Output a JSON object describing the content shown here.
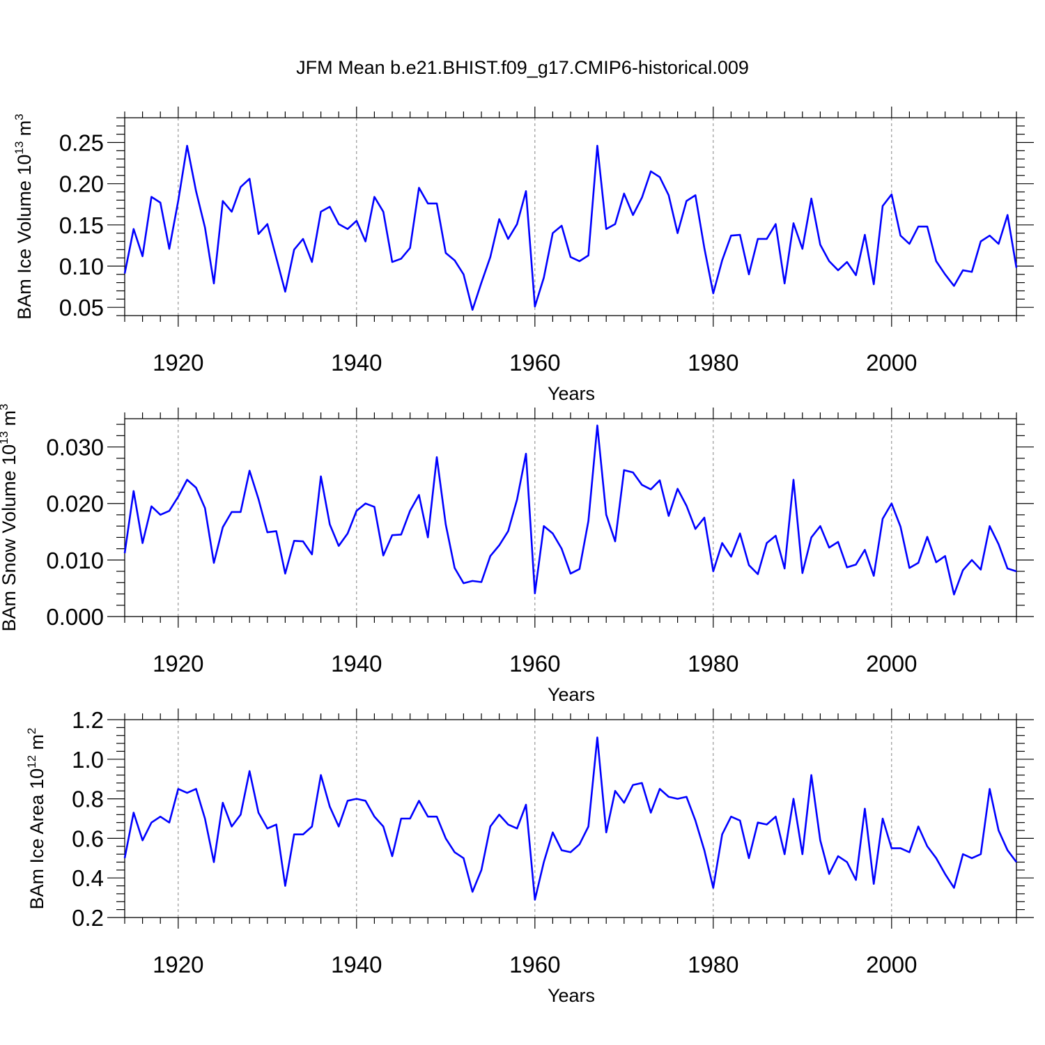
{
  "figure": {
    "title": "JFM Mean b.e21.BHIST.f09_g17.CMIP6-historical.009"
  },
  "chart_data": [
    {
      "type": "line",
      "series_color": "#0000ff",
      "title": "",
      "xlabel": "Years",
      "ylabel_main": "BAm Ice Volume 10",
      "ylabel_exp": "13",
      "ylabel_unit": " m",
      "ylabel_unit_exp": "3",
      "xlim": [
        1914,
        2014
      ],
      "ylim": [
        0.04,
        0.28
      ],
      "x_ticks": [
        "1920",
        "1940",
        "1960",
        "1980",
        "2000"
      ],
      "y_ticks": [
        "0.05",
        "0.10",
        "0.15",
        "0.20",
        "0.25"
      ],
      "x_start": 1914,
      "values": [
        0.091,
        0.145,
        0.112,
        0.184,
        0.177,
        0.121,
        0.179,
        0.246,
        0.191,
        0.147,
        0.079,
        0.179,
        0.166,
        0.196,
        0.206,
        0.139,
        0.151,
        0.11,
        0.069,
        0.12,
        0.133,
        0.105,
        0.166,
        0.172,
        0.151,
        0.145,
        0.155,
        0.13,
        0.184,
        0.166,
        0.105,
        0.109,
        0.122,
        0.195,
        0.176,
        0.176,
        0.116,
        0.107,
        0.09,
        0.047,
        0.08,
        0.111,
        0.157,
        0.133,
        0.151,
        0.191,
        0.051,
        0.086,
        0.14,
        0.149,
        0.111,
        0.106,
        0.113,
        0.246,
        0.145,
        0.151,
        0.188,
        0.162,
        0.183,
        0.215,
        0.208,
        0.186,
        0.14,
        0.179,
        0.186,
        0.122,
        0.067,
        0.107,
        0.137,
        0.138,
        0.09,
        0.133,
        0.133,
        0.151,
        0.079,
        0.152,
        0.121,
        0.182,
        0.126,
        0.106,
        0.095,
        0.105,
        0.089,
        0.138,
        0.078,
        0.173,
        0.187,
        0.137,
        0.127,
        0.148,
        0.148,
        0.106,
        0.09,
        0.076,
        0.095,
        0.093,
        0.13,
        0.137,
        0.127,
        0.162,
        0.098
      ]
    },
    {
      "type": "line",
      "series_color": "#0000ff",
      "title": "",
      "xlabel": "Years",
      "ylabel_main": "BAm Snow Volume 10",
      "ylabel_exp": "13",
      "ylabel_unit": " m",
      "ylabel_unit_exp": "3",
      "xlim": [
        1914,
        2014
      ],
      "ylim": [
        0.0,
        0.035
      ],
      "x_ticks": [
        "1920",
        "1940",
        "1960",
        "1980",
        "2000"
      ],
      "y_ticks": [
        "0.000",
        "0.010",
        "0.020",
        "0.030"
      ],
      "x_start": 1914,
      "values": [
        0.0112,
        0.0222,
        0.013,
        0.0195,
        0.018,
        0.0187,
        0.0212,
        0.0242,
        0.0228,
        0.0192,
        0.0095,
        0.0158,
        0.0185,
        0.0185,
        0.0258,
        0.0208,
        0.0149,
        0.0151,
        0.0076,
        0.0134,
        0.0133,
        0.011,
        0.0248,
        0.0163,
        0.0125,
        0.0147,
        0.0187,
        0.02,
        0.0194,
        0.0108,
        0.0144,
        0.0145,
        0.0187,
        0.0215,
        0.014,
        0.0282,
        0.0163,
        0.0086,
        0.0059,
        0.0063,
        0.0061,
        0.0107,
        0.0126,
        0.0151,
        0.0207,
        0.0288,
        0.0041,
        0.016,
        0.0147,
        0.012,
        0.0076,
        0.0084,
        0.0169,
        0.0338,
        0.018,
        0.0133,
        0.0259,
        0.0255,
        0.0233,
        0.0225,
        0.0241,
        0.0178,
        0.0226,
        0.0196,
        0.0155,
        0.0175,
        0.008,
        0.013,
        0.0106,
        0.0147,
        0.0091,
        0.0075,
        0.013,
        0.0143,
        0.0085,
        0.0242,
        0.0077,
        0.014,
        0.016,
        0.0122,
        0.0132,
        0.0087,
        0.0092,
        0.0118,
        0.0072,
        0.0173,
        0.02,
        0.0159,
        0.0086,
        0.0095,
        0.0141,
        0.0096,
        0.0107,
        0.0039,
        0.0082,
        0.01,
        0.0083,
        0.016,
        0.0128,
        0.0085,
        0.008
      ]
    },
    {
      "type": "line",
      "series_color": "#0000ff",
      "title": "",
      "xlabel": "Years",
      "ylabel_main": "BAm Ice Area 10",
      "ylabel_exp": "12",
      "ylabel_unit": " m",
      "ylabel_unit_exp": "2",
      "xlim": [
        1914,
        2014
      ],
      "ylim": [
        0.2,
        1.2
      ],
      "x_ticks": [
        "1920",
        "1940",
        "1960",
        "1980",
        "2000"
      ],
      "y_ticks": [
        "0.2",
        "0.4",
        "0.6",
        "0.8",
        "1.0",
        "1.2"
      ],
      "x_start": 1914,
      "values": [
        0.5,
        0.73,
        0.59,
        0.68,
        0.71,
        0.68,
        0.85,
        0.83,
        0.85,
        0.7,
        0.48,
        0.78,
        0.66,
        0.72,
        0.94,
        0.73,
        0.65,
        0.67,
        0.36,
        0.62,
        0.62,
        0.66,
        0.92,
        0.76,
        0.66,
        0.79,
        0.8,
        0.79,
        0.71,
        0.66,
        0.51,
        0.7,
        0.7,
        0.79,
        0.71,
        0.71,
        0.6,
        0.53,
        0.5,
        0.33,
        0.44,
        0.66,
        0.72,
        0.67,
        0.65,
        0.77,
        0.29,
        0.48,
        0.63,
        0.54,
        0.53,
        0.57,
        0.66,
        1.11,
        0.63,
        0.84,
        0.78,
        0.87,
        0.88,
        0.73,
        0.85,
        0.81,
        0.8,
        0.81,
        0.69,
        0.54,
        0.35,
        0.62,
        0.71,
        0.69,
        0.5,
        0.68,
        0.67,
        0.71,
        0.52,
        0.8,
        0.52,
        0.92,
        0.59,
        0.42,
        0.51,
        0.48,
        0.39,
        0.75,
        0.37,
        0.7,
        0.55,
        0.55,
        0.53,
        0.66,
        0.56,
        0.5,
        0.42,
        0.35,
        0.52,
        0.5,
        0.52,
        0.85,
        0.64,
        0.54,
        0.48
      ]
    }
  ]
}
